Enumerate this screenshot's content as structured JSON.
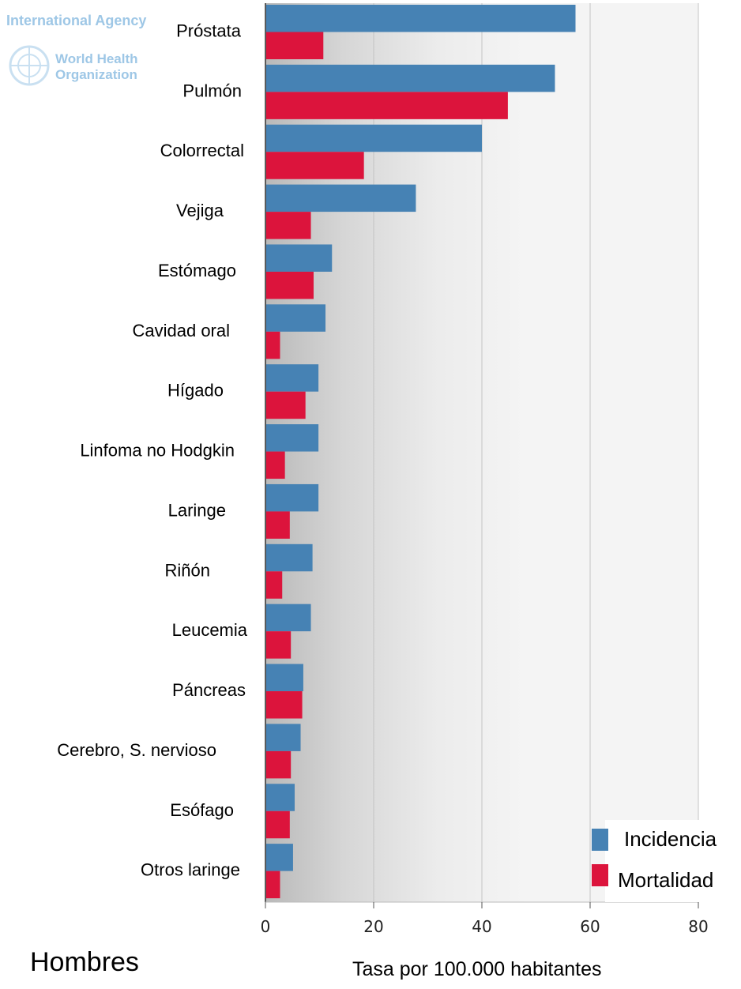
{
  "chart_data": {
    "type": "bar",
    "orientation": "horizontal",
    "subtitle": "Hombres",
    "xlabel": "Tasa por 100.000 habitantes",
    "xlim": [
      0,
      80
    ],
    "xticks": [
      "0",
      "20",
      "40",
      "60",
      "80"
    ],
    "grid": true,
    "legend_position": "bottom-right",
    "categories": [
      "Próstata",
      "Pulmón",
      "Colorrectal",
      "Vejiga",
      "Estómago",
      "Cavidad oral",
      "Hígado",
      "Linfoma no Hodgkin",
      "Laringe",
      "Riñón",
      "Leucemia",
      "Páncreas",
      "Cerebro, S. nervioso",
      "Esófago",
      "Otros laringe"
    ],
    "series": [
      {
        "name": "Incidencia",
        "color": "#4682b4",
        "values": [
          57.3,
          53.5,
          40.0,
          27.8,
          12.3,
          11.1,
          9.8,
          9.8,
          9.8,
          8.7,
          8.4,
          7.0,
          6.5,
          5.4,
          5.1
        ]
      },
      {
        "name": "Mortalidad",
        "color": "#dc143c",
        "values": [
          10.7,
          44.8,
          18.2,
          8.4,
          8.9,
          2.7,
          7.4,
          3.6,
          4.5,
          3.1,
          4.7,
          6.8,
          4.7,
          4.5,
          2.7
        ]
      }
    ]
  },
  "watermark": {
    "line1": "International Agency",
    "line2": "World Health",
    "line3": "Organization",
    "logo": "who-emblem-icon"
  }
}
